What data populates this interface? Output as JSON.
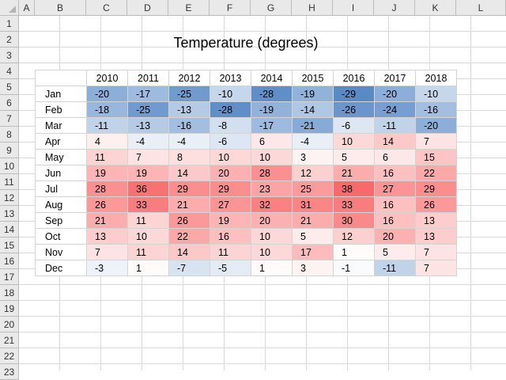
{
  "columns": [
    "A",
    "B",
    "C",
    "D",
    "E",
    "F",
    "G",
    "H",
    "I",
    "J",
    "K",
    "L"
  ],
  "rows": [
    1,
    2,
    3,
    4,
    5,
    6,
    7,
    8,
    9,
    10,
    11,
    12,
    13,
    14,
    15,
    16,
    17,
    18,
    19,
    20,
    21,
    22,
    23
  ],
  "title": "Temperature (degrees)",
  "years": [
    "2010",
    "2011",
    "2012",
    "2013",
    "2014",
    "2015",
    "2016",
    "2017",
    "2018"
  ],
  "table": [
    {
      "month": "Jan",
      "values": [
        -20,
        -17,
        -25,
        -10,
        -28,
        -19,
        -29,
        -20,
        -10
      ]
    },
    {
      "month": "Feb",
      "values": [
        -18,
        -25,
        -13,
        -28,
        -19,
        -14,
        -26,
        -24,
        -16
      ]
    },
    {
      "month": "Mar",
      "values": [
        -11,
        -13,
        -16,
        -8,
        -17,
        -21,
        -6,
        -11,
        -20
      ]
    },
    {
      "month": "Apr",
      "values": [
        4,
        -4,
        -4,
        -6,
        6,
        -4,
        10,
        14,
        7
      ]
    },
    {
      "month": "May",
      "values": [
        11,
        7,
        8,
        10,
        10,
        3,
        5,
        6,
        15
      ]
    },
    {
      "month": "Jun",
      "values": [
        19,
        19,
        14,
        20,
        28,
        12,
        21,
        16,
        22
      ]
    },
    {
      "month": "Jul",
      "values": [
        28,
        36,
        29,
        29,
        23,
        25,
        38,
        27,
        29
      ]
    },
    {
      "month": "Aug",
      "values": [
        26,
        33,
        21,
        27,
        32,
        31,
        33,
        16,
        26
      ]
    },
    {
      "month": "Sep",
      "values": [
        21,
        11,
        26,
        19,
        20,
        21,
        30,
        16,
        13
      ]
    },
    {
      "month": "Oct",
      "values": [
        13,
        10,
        22,
        16,
        10,
        5,
        12,
        20,
        13
      ]
    },
    {
      "month": "Nov",
      "values": [
        7,
        11,
        14,
        11,
        10,
        17,
        1,
        5,
        7
      ]
    },
    {
      "month": "Dec",
      "values": [
        -3,
        1,
        -7,
        -5,
        1,
        3,
        -1,
        -11,
        7
      ]
    }
  ],
  "color_scale": {
    "min_color": "#5a8ac6",
    "mid_color": "#ffffff",
    "max_color": "#f8696b",
    "min": -29,
    "mid": 0,
    "max": 38
  }
}
